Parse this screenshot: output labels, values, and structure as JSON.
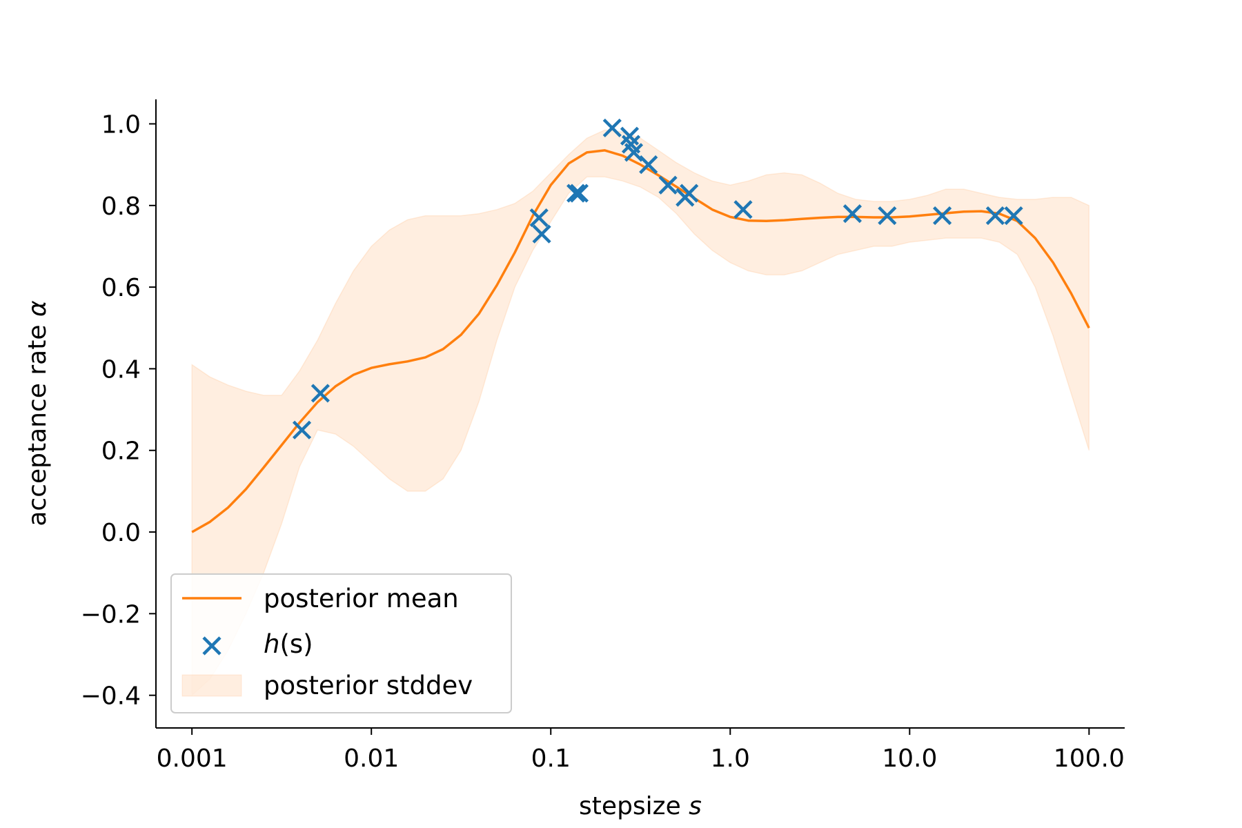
{
  "chart_data": {
    "type": "line",
    "title": "",
    "xlabel": "stepsize s",
    "xlabel_main": "stepsize ",
    "xlabel_var": "s",
    "ylabel": "acceptance rate α",
    "ylabel_main": "acceptance rate ",
    "ylabel_var": "α",
    "x_scale": "log",
    "xlim": [
      0.00063,
      158
    ],
    "ylim": [
      -0.48,
      1.06
    ],
    "x_ticks": [
      0.001,
      0.01,
      0.1,
      1,
      10,
      100
    ],
    "x_tick_labels": [
      "0.001",
      "0.01",
      "0.1",
      "1.0",
      "10.0",
      "100.0"
    ],
    "y_ticks": [
      -0.4,
      -0.2,
      0.0,
      0.2,
      0.4,
      0.6,
      0.8,
      1.0
    ],
    "y_tick_labels": [
      "−0.4",
      "−0.2",
      "0.0",
      "0.2",
      "0.4",
      "0.6",
      "0.8",
      "1.0"
    ],
    "grid": false,
    "legend_position": "bottom-left",
    "colors": {
      "mean": "#ff7f0e",
      "samples": "#1f77b4",
      "band": "#ff7f0e"
    },
    "series": [
      {
        "name": "posterior mean",
        "kind": "line",
        "x": [
          0.001,
          0.00126,
          0.00159,
          0.002,
          0.00251,
          0.00316,
          0.00398,
          0.00501,
          0.00631,
          0.00794,
          0.01,
          0.0126,
          0.0159,
          0.02,
          0.0251,
          0.0316,
          0.0398,
          0.0501,
          0.0631,
          0.0794,
          0.1,
          0.126,
          0.159,
          0.2,
          0.251,
          0.316,
          0.398,
          0.501,
          0.631,
          0.794,
          1.0,
          1.26,
          1.59,
          2.0,
          2.51,
          3.16,
          3.98,
          5.01,
          6.31,
          7.94,
          10.0,
          12.6,
          15.9,
          20.0,
          25.1,
          31.6,
          39.8,
          50.1,
          63.1,
          79.4,
          100.0
        ],
        "y": [
          0.0,
          0.025,
          0.06,
          0.105,
          0.158,
          0.213,
          0.268,
          0.318,
          0.357,
          0.385,
          0.402,
          0.411,
          0.418,
          0.428,
          0.448,
          0.483,
          0.535,
          0.605,
          0.685,
          0.775,
          0.85,
          0.903,
          0.93,
          0.935,
          0.922,
          0.9,
          0.874,
          0.846,
          0.818,
          0.79,
          0.772,
          0.763,
          0.762,
          0.764,
          0.767,
          0.77,
          0.772,
          0.772,
          0.771,
          0.771,
          0.773,
          0.777,
          0.781,
          0.785,
          0.786,
          0.78,
          0.762,
          0.72,
          0.66,
          0.585,
          0.5
        ]
      },
      {
        "name": "h(s)",
        "name_main": "h",
        "name_suffix": "(s)",
        "kind": "scatter",
        "x": [
          0.0041,
          0.0052,
          0.086,
          0.089,
          0.138,
          0.144,
          0.22,
          0.275,
          0.28,
          0.29,
          0.35,
          0.45,
          0.56,
          0.59,
          1.18,
          4.8,
          7.5,
          15.2,
          30,
          38
        ],
        "y": [
          0.25,
          0.34,
          0.77,
          0.73,
          0.83,
          0.83,
          0.99,
          0.97,
          0.95,
          0.93,
          0.9,
          0.85,
          0.82,
          0.83,
          0.79,
          0.78,
          0.775,
          0.775,
          0.775,
          0.775
        ]
      },
      {
        "name": "posterior stddev",
        "kind": "band",
        "x": [
          0.001,
          0.00126,
          0.00159,
          0.002,
          0.00251,
          0.00316,
          0.00398,
          0.00501,
          0.00631,
          0.00794,
          0.01,
          0.0126,
          0.0159,
          0.02,
          0.0251,
          0.0316,
          0.0398,
          0.0501,
          0.0631,
          0.0794,
          0.1,
          0.126,
          0.159,
          0.2,
          0.251,
          0.316,
          0.398,
          0.501,
          0.631,
          0.794,
          1.0,
          1.26,
          1.59,
          2.0,
          2.51,
          3.16,
          3.98,
          5.01,
          6.31,
          7.94,
          10.0,
          12.6,
          15.9,
          20.0,
          25.1,
          31.6,
          39.8,
          50.1,
          63.1,
          79.4,
          100.0
        ],
        "lower": [
          -0.4,
          -0.36,
          -0.29,
          -0.2,
          -0.1,
          0.02,
          0.16,
          0.25,
          0.24,
          0.21,
          0.17,
          0.13,
          0.1,
          0.1,
          0.13,
          0.2,
          0.32,
          0.47,
          0.6,
          0.69,
          0.76,
          0.83,
          0.87,
          0.87,
          0.86,
          0.845,
          0.82,
          0.78,
          0.73,
          0.69,
          0.66,
          0.64,
          0.63,
          0.63,
          0.64,
          0.66,
          0.68,
          0.69,
          0.7,
          0.7,
          0.71,
          0.715,
          0.72,
          0.72,
          0.72,
          0.71,
          0.68,
          0.6,
          0.48,
          0.34,
          0.2
        ],
        "upper": [
          0.41,
          0.38,
          0.36,
          0.345,
          0.335,
          0.335,
          0.395,
          0.47,
          0.56,
          0.64,
          0.7,
          0.74,
          0.765,
          0.775,
          0.775,
          0.775,
          0.78,
          0.79,
          0.805,
          0.835,
          0.88,
          0.925,
          0.965,
          0.985,
          0.98,
          0.965,
          0.935,
          0.905,
          0.88,
          0.86,
          0.85,
          0.86,
          0.875,
          0.88,
          0.875,
          0.855,
          0.83,
          0.815,
          0.81,
          0.81,
          0.815,
          0.825,
          0.84,
          0.84,
          0.83,
          0.82,
          0.815,
          0.815,
          0.82,
          0.82,
          0.8
        ]
      }
    ]
  }
}
